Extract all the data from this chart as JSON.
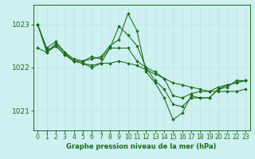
{
  "xlabel": "Graphe pression niveau de la mer (hPa)",
  "ylabel": "",
  "bg_color": "#cff0f0",
  "grid_color": "#b8e8e8",
  "line_color": "#1a6b1a",
  "marker_color": "#1a6b1a",
  "ylim": [
    1020.55,
    1023.45
  ],
  "xlim": [
    -0.5,
    23.5
  ],
  "yticks": [
    1021,
    1022,
    1023
  ],
  "xticks": [
    0,
    1,
    2,
    3,
    4,
    5,
    6,
    7,
    8,
    9,
    10,
    11,
    12,
    13,
    14,
    15,
    16,
    17,
    18,
    19,
    20,
    21,
    22,
    23
  ],
  "series": [
    [
      1023.0,
      1022.45,
      1022.6,
      1022.35,
      1022.2,
      1022.15,
      1022.2,
      1022.25,
      1022.5,
      1022.65,
      1023.25,
      1022.85,
      1021.9,
      1021.65,
      1021.3,
      1020.8,
      1020.95,
      1021.35,
      1021.3,
      1021.3,
      1021.5,
      1021.6,
      1021.65,
      1021.7
    ],
    [
      1023.0,
      1022.4,
      1022.5,
      1022.3,
      1022.15,
      1022.1,
      1022.05,
      1022.1,
      1022.1,
      1022.15,
      1022.1,
      1022.05,
      1021.95,
      1021.85,
      1021.75,
      1021.65,
      1021.6,
      1021.55,
      1021.5,
      1021.45,
      1021.45,
      1021.45,
      1021.45,
      1021.5
    ],
    [
      1022.45,
      1022.35,
      1022.5,
      1022.3,
      1022.15,
      1022.1,
      1022.0,
      1022.1,
      1022.45,
      1022.45,
      1022.45,
      1022.15,
      1022.0,
      1021.9,
      1021.75,
      1021.35,
      1021.3,
      1021.4,
      1021.45,
      1021.45,
      1021.55,
      1021.6,
      1021.65,
      1021.7
    ],
    [
      1023.0,
      1022.35,
      1022.55,
      1022.35,
      1022.15,
      1022.15,
      1022.25,
      1022.2,
      1022.45,
      1022.95,
      1022.75,
      1022.5,
      1022.0,
      1021.7,
      1021.5,
      1021.15,
      1021.1,
      1021.3,
      1021.3,
      1021.3,
      1021.5,
      1021.55,
      1021.7,
      1021.7
    ]
  ]
}
